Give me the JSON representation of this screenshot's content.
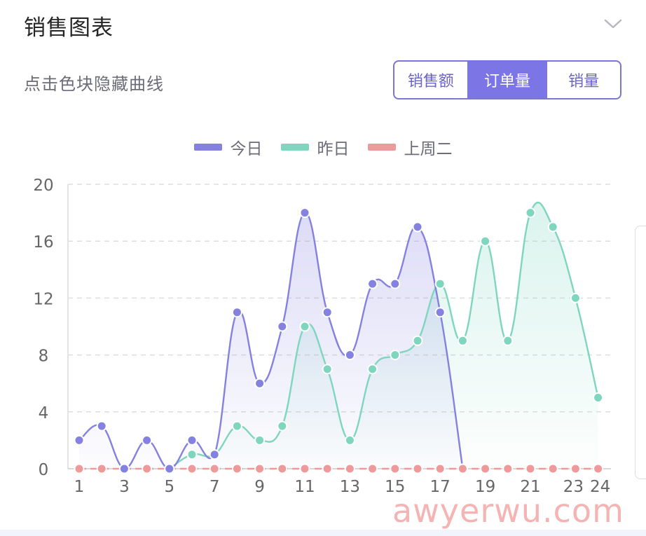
{
  "header": {
    "title": "销售图表"
  },
  "hint": "点击色块隐藏曲线",
  "segmented": {
    "options": [
      "销售额",
      "订单量",
      "销量"
    ],
    "active": 1
  },
  "legend": [
    {
      "name": "今日",
      "color": "#8481e0"
    },
    {
      "name": "昨日",
      "color": "#7fd6bf"
    },
    {
      "name": "上周二",
      "color": "#ef9a9a"
    }
  ],
  "watermark": "awyerwu.com",
  "chart_data": {
    "type": "line",
    "x": [
      1,
      2,
      3,
      4,
      5,
      6,
      7,
      8,
      9,
      10,
      11,
      12,
      13,
      14,
      15,
      16,
      17,
      18,
      19,
      20,
      21,
      22,
      23,
      24
    ],
    "x_tick_labels": [
      "1",
      "3",
      "5",
      "7",
      "9",
      "11",
      "13",
      "15",
      "17",
      "19",
      "21",
      "23",
      "24"
    ],
    "y_ticks": [
      0,
      4,
      8,
      12,
      16,
      20
    ],
    "ylim": [
      0,
      20
    ],
    "grid": true,
    "legend_position": "top-center",
    "series": [
      {
        "name": "今日",
        "color": "#8481e0",
        "values": [
          2,
          3,
          0,
          2,
          0,
          2,
          1,
          11,
          6,
          10,
          18,
          11,
          8,
          13,
          13,
          17,
          11,
          0,
          null,
          null,
          null,
          null,
          null,
          null
        ]
      },
      {
        "name": "昨日",
        "color": "#7fd6bf",
        "values": [
          null,
          null,
          null,
          null,
          0,
          1,
          1,
          3,
          2,
          3,
          10,
          7,
          2,
          7,
          8,
          9,
          13,
          9,
          16,
          9,
          18,
          17,
          12,
          5
        ]
      },
      {
        "name": "上周二",
        "color": "#ef9a9a",
        "values": [
          0,
          0,
          0,
          0,
          0,
          0,
          0,
          0,
          0,
          0,
          0,
          0,
          0,
          0,
          0,
          0,
          0,
          0,
          0,
          0,
          0,
          0,
          0,
          0
        ]
      }
    ]
  }
}
